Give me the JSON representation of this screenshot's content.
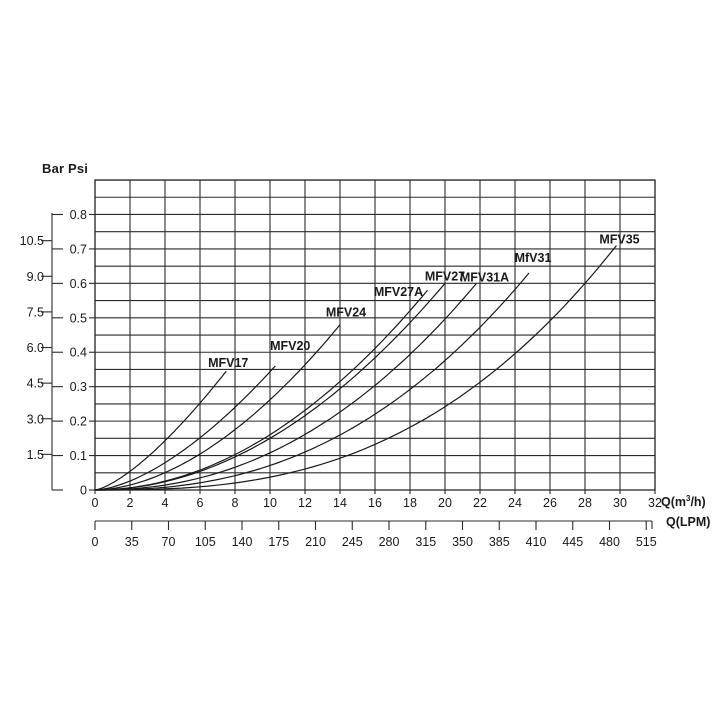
{
  "header": {
    "bar_label": "Bar",
    "psi_label": "Psi"
  },
  "axes": {
    "psi_scale": {
      "name": "psi-outer-scale",
      "values": [
        10.5,
        9.0,
        7.5,
        6.0,
        4.5,
        3.0,
        1.5
      ]
    },
    "bar_scale": {
      "name": "bar-inner-scale",
      "values": [
        "0.8",
        "0.7",
        "0.6",
        "0.5",
        "0.4",
        "0.3",
        "0.2",
        "0.1",
        "0"
      ]
    },
    "x_m3h": {
      "tick_labels": [
        "0",
        "2",
        "4",
        "6",
        "8",
        "10",
        "12",
        "14",
        "16",
        "18",
        "20",
        "22",
        "24",
        "26",
        "28",
        "30",
        "32"
      ],
      "unit_prefix": "Q(m",
      "unit_sup": "3",
      "unit_suffix": "/h)"
    },
    "x_lpm": {
      "tick_labels": [
        "0",
        "35",
        "70",
        "105",
        "140",
        "175",
        "210",
        "245",
        "280",
        "315",
        "350",
        "385",
        "410",
        "445",
        "480",
        "515"
      ],
      "unit_label": "Q(LPM)"
    }
  },
  "chart_data": {
    "type": "line",
    "title": "",
    "xlabel": "Q(m3/h)",
    "x2label": "Q(LPM)",
    "ylabel_outer": "Psi",
    "ylabel_inner": "Bar",
    "x_range_m3h": [
      0,
      32
    ],
    "y_range_bar": [
      0,
      0.9
    ],
    "y_range_psi_ticks": [
      1.5,
      10.5
    ],
    "grid": {
      "x_step_m3h": 2,
      "y_step_bar": 0.05,
      "grid_on": true
    },
    "series": [
      {
        "name": "MFV17",
        "q_max_m3h": 7.5,
        "dp_max_bar": 0.345,
        "exponent": 1.4
      },
      {
        "name": "MFV20",
        "q_max_m3h": 10.3,
        "dp_max_bar": 0.36,
        "exponent": 1.6
      },
      {
        "name": "MFV24",
        "q_max_m3h": 14.0,
        "dp_max_bar": 0.48,
        "exponent": 1.8
      },
      {
        "name": "MFV27A",
        "q_max_m3h": 19.0,
        "dp_max_bar": 0.58,
        "exponent": 2.0
      },
      {
        "name": "MFV27",
        "q_max_m3h": 20.0,
        "dp_max_bar": 0.6,
        "exponent": 2.0
      },
      {
        "name": "MFV31A",
        "q_max_m3h": 21.8,
        "dp_max_bar": 0.6,
        "exponent": 2.2
      },
      {
        "name": "MfV31",
        "q_max_m3h": 24.8,
        "dp_max_bar": 0.63,
        "exponent": 2.4
      },
      {
        "name": "MFV35",
        "q_max_m3h": 29.8,
        "dp_max_bar": 0.71,
        "exponent": 2.7
      }
    ]
  },
  "colors": {
    "background": "#ffffff",
    "grid": "#2b2b2b",
    "curve": "#1a1a1a",
    "text": "#1a1a1a"
  }
}
